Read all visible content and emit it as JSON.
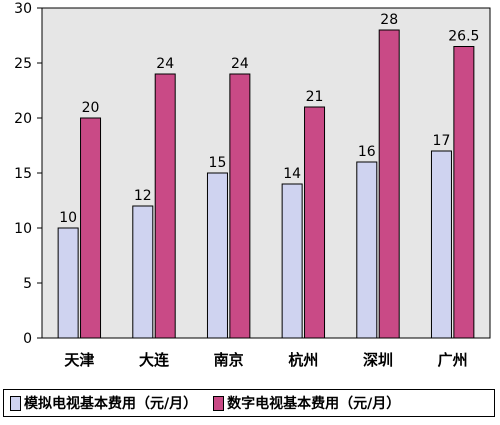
{
  "chart_data": {
    "type": "bar",
    "categories": [
      "天津",
      "大连",
      "南京",
      "杭州",
      "深圳",
      "广州"
    ],
    "series": [
      {
        "name": "模拟电视基本费用（元/月）",
        "values": [
          10,
          12,
          15,
          14,
          16,
          17
        ],
        "labels": [
          "10",
          "12",
          "15",
          "14",
          "16",
          "17"
        ],
        "color": "#cfd3f0"
      },
      {
        "name": "数字电视基本费用（元/月）",
        "values": [
          20,
          24,
          24,
          21,
          28,
          26.5
        ],
        "labels": [
          "20",
          "24",
          "24",
          "21",
          "28",
          "26.5"
        ],
        "color": "#c94a86"
      }
    ],
    "yticks": [
      "0",
      "5",
      "10",
      "15",
      "20",
      "25",
      "30"
    ],
    "ylim": [
      0,
      30
    ],
    "grid": false,
    "legend_position": "bottom",
    "plot_background": "#e6e6e6"
  }
}
